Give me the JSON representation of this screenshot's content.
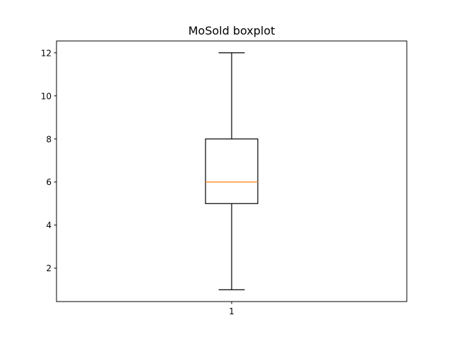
{
  "chart_data": {
    "type": "boxplot",
    "title": "MoSold boxplot",
    "xlabel": "",
    "ylabel": "",
    "categories": [
      "1"
    ],
    "boxes": [
      {
        "category": "1",
        "whisker_low": 1,
        "q1": 5,
        "median": 6,
        "q3": 8,
        "whisker_high": 12
      }
    ],
    "ylim": [
      0.45,
      12.55
    ],
    "yticks": [
      2,
      4,
      6,
      8,
      10,
      12
    ],
    "grid": false,
    "colors": {
      "box": "#000000",
      "median": "#ff7f0e",
      "axes": "#000000"
    }
  }
}
